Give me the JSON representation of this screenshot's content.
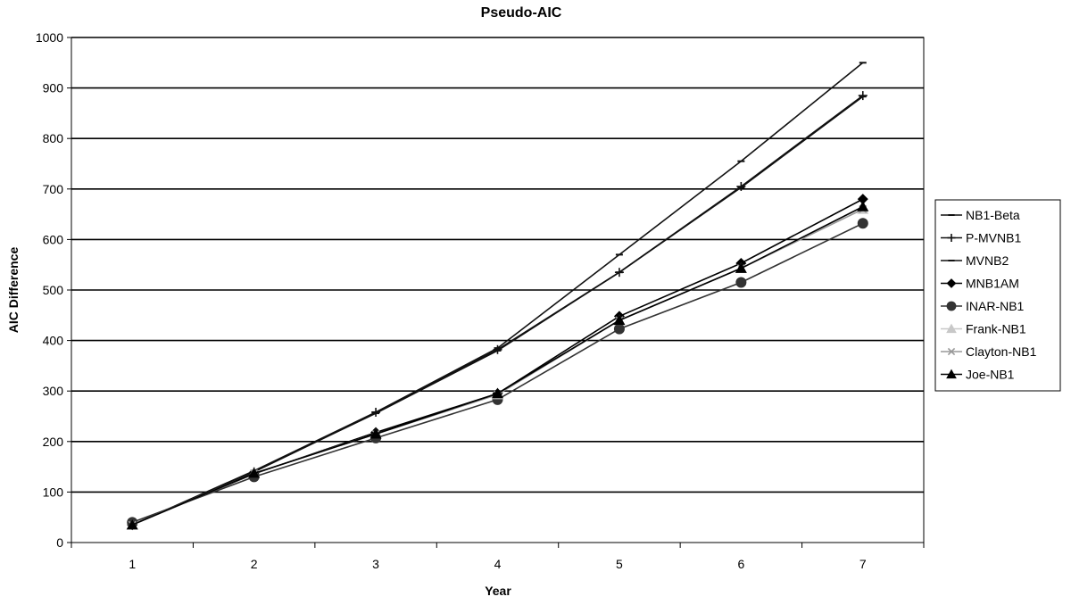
{
  "chart_data": {
    "type": "line",
    "title": "Pseudo-AIC",
    "xlabel": "Year",
    "ylabel": "AIC Difference",
    "categories": [
      "1",
      "2",
      "3",
      "4",
      "5",
      "6",
      "7"
    ],
    "x": [
      1,
      2,
      3,
      4,
      5,
      6,
      7
    ],
    "ylim": [
      0,
      1000
    ],
    "yticks": [
      "0",
      "100",
      "200",
      "300",
      "400",
      "500",
      "600",
      "700",
      "800",
      "900",
      "1000"
    ],
    "grid": "horizontal",
    "legend_position": "right",
    "series": [
      {
        "name": "NB1-Beta",
        "values": [
          35,
          142,
          258,
          385,
          570,
          755,
          950
        ],
        "marker": "dash",
        "color": "#111111"
      },
      {
        "name": "P-MVNB1",
        "values": [
          35,
          140,
          258,
          382,
          535,
          705,
          885
        ],
        "marker": "plus",
        "color": "#111111"
      },
      {
        "name": "MVNB2",
        "values": [
          35,
          140,
          256,
          380,
          535,
          703,
          883
        ],
        "marker": "dash",
        "color": "#111111"
      },
      {
        "name": "MNB1AM",
        "values": [
          35,
          136,
          218,
          295,
          448,
          553,
          680
        ],
        "marker": "diamond",
        "color": "#000000"
      },
      {
        "name": "INAR-NB1",
        "values": [
          40,
          130,
          207,
          283,
          423,
          515,
          632
        ],
        "marker": "circle",
        "color": "#333333"
      },
      {
        "name": "Frank-NB1",
        "values": [
          35,
          137,
          215,
          293,
          440,
          543,
          660
        ],
        "marker": "triangle",
        "color": "#c8c8c8"
      },
      {
        "name": "Clayton-NB1",
        "values": [
          35,
          137,
          215,
          293,
          440,
          543,
          660
        ],
        "marker": "x",
        "color": "#999999"
      },
      {
        "name": "Joe-NB1",
        "values": [
          35,
          137,
          215,
          295,
          440,
          543,
          665
        ],
        "marker": "triangle",
        "color": "#000000"
      }
    ]
  }
}
